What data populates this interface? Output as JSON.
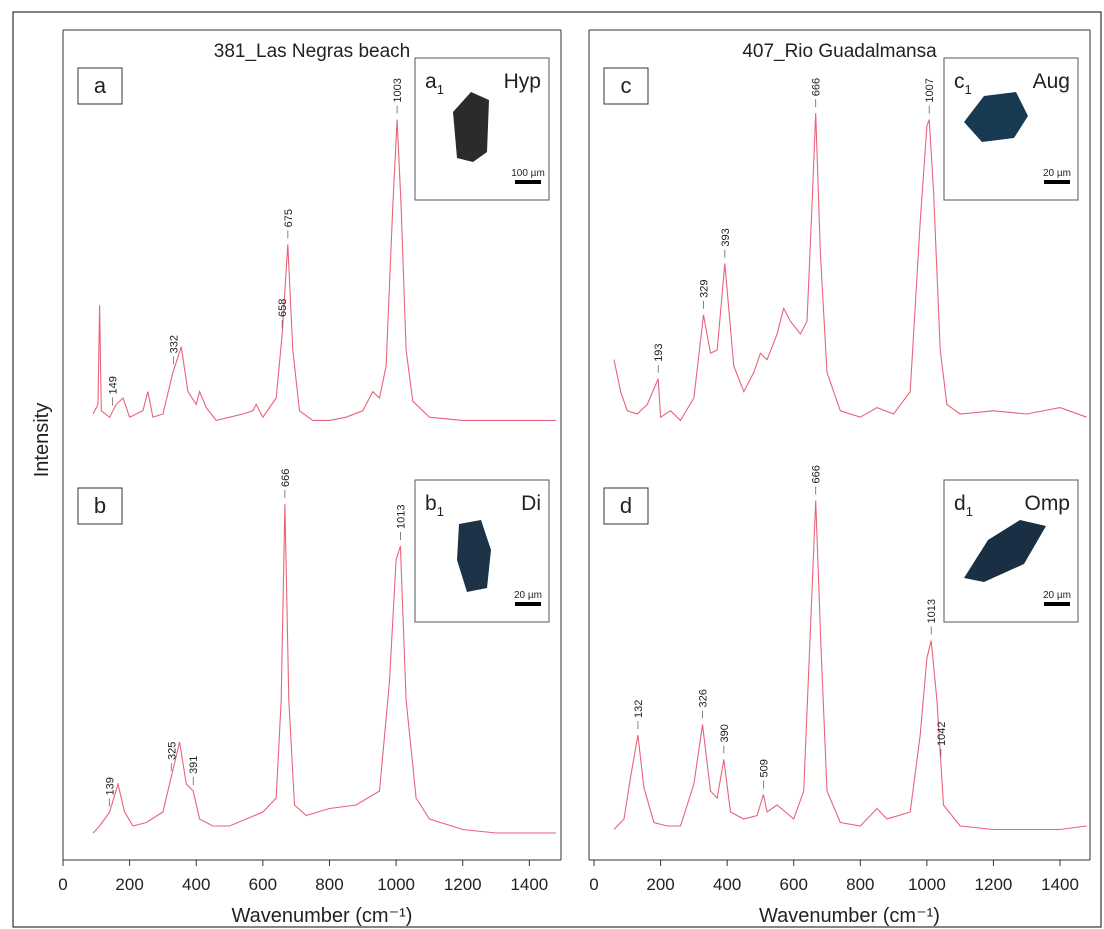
{
  "chart_data": [
    {
      "type": "line",
      "title": "381_Las Negras beach",
      "xlabel": "Wavenumber (cm⁻¹)",
      "ylabel": "Intensity",
      "color": "#e8637a",
      "xlim": [
        0,
        1495
      ],
      "xticks": [
        0,
        200,
        400,
        600,
        800,
        1000,
        1200,
        1400
      ],
      "panels": [
        {
          "label": "a",
          "ylim": [
            0,
            100
          ],
          "inset": {
            "label": "a",
            "subscript": "1",
            "mineral": "Hyp",
            "scale": "100 µm"
          },
          "x": [
            90,
            105,
            110,
            115,
            140,
            160,
            180,
            200,
            240,
            255,
            270,
            300,
            330,
            355,
            375,
            400,
            410,
            430,
            460,
            500,
            540,
            570,
            580,
            600,
            640,
            658,
            675,
            690,
            710,
            750,
            800,
            850,
            900,
            930,
            950,
            970,
            990,
            1003,
            1015,
            1030,
            1050,
            1100,
            1200,
            1300,
            1400,
            1480
          ],
          "values": [
            5,
            8,
            39,
            6,
            4,
            8,
            10,
            4,
            6,
            12,
            4,
            5,
            18,
            26,
            12,
            8,
            12,
            7,
            3,
            4,
            5,
            6,
            8,
            4,
            10,
            30,
            58,
            25,
            6,
            3,
            3,
            4,
            6,
            12,
            10,
            20,
            70,
            97,
            70,
            25,
            9,
            4,
            3,
            3,
            3,
            3
          ],
          "peaks": [
            149,
            332,
            658,
            675,
            1003
          ]
        },
        {
          "label": "b",
          "ylim": [
            0,
            100
          ],
          "inset": {
            "label": "b",
            "subscript": "1",
            "mineral": "Di",
            "scale": "20 µm"
          },
          "x": [
            90,
            110,
            140,
            165,
            185,
            210,
            250,
            300,
            330,
            350,
            370,
            391,
            410,
            450,
            500,
            550,
            600,
            640,
            655,
            666,
            678,
            695,
            730,
            800,
            880,
            950,
            980,
            1000,
            1013,
            1030,
            1060,
            1100,
            1200,
            1300,
            1400,
            1480
          ],
          "values": [
            2,
            4,
            8,
            16,
            8,
            4,
            5,
            8,
            20,
            28,
            16,
            14,
            6,
            4,
            4,
            6,
            8,
            12,
            40,
            96,
            40,
            10,
            7,
            9,
            10,
            14,
            45,
            80,
            84,
            40,
            12,
            6,
            3,
            2,
            2,
            2
          ],
          "peaks": [
            139,
            325,
            391,
            666,
            1013
          ]
        }
      ]
    },
    {
      "type": "line",
      "title": "407_Rio Guadalmansa",
      "xlabel": "Wavenumber (cm⁻¹)",
      "color": "#e8637a",
      "xlim": [
        -15,
        1490
      ],
      "xticks": [
        0,
        200,
        400,
        600,
        800,
        1000,
        1200,
        1400
      ],
      "panels": [
        {
          "label": "c",
          "ylim": [
            0,
            100
          ],
          "inset": {
            "label": "c",
            "subscript": "1",
            "mineral": "Aug",
            "scale": "20 µm"
          },
          "x": [
            60,
            80,
            100,
            130,
            160,
            193,
            200,
            230,
            260,
            300,
            329,
            350,
            370,
            393,
            420,
            450,
            480,
            500,
            520,
            550,
            570,
            590,
            620,
            640,
            655,
            666,
            680,
            700,
            740,
            800,
            850,
            900,
            950,
            980,
            1000,
            1007,
            1020,
            1040,
            1060,
            1100,
            1200,
            1300,
            1400,
            1480
          ],
          "values": [
            22,
            12,
            6,
            5,
            8,
            16,
            4,
            6,
            3,
            10,
            36,
            24,
            25,
            52,
            20,
            12,
            18,
            24,
            22,
            30,
            38,
            34,
            30,
            34,
            70,
            99,
            55,
            18,
            6,
            4,
            7,
            5,
            12,
            65,
            95,
            97,
            75,
            25,
            8,
            5,
            6,
            5,
            7,
            4
          ],
          "peaks": [
            193,
            329,
            393,
            666,
            1007
          ]
        },
        {
          "label": "d",
          "ylim": [
            0,
            100
          ],
          "inset": {
            "label": "d",
            "subscript": "1",
            "mineral": "Omp",
            "scale": "20 µm"
          },
          "x": [
            60,
            90,
            110,
            132,
            150,
            180,
            220,
            260,
            300,
            326,
            350,
            370,
            390,
            410,
            450,
            490,
            509,
            520,
            550,
            600,
            630,
            650,
            666,
            682,
            700,
            740,
            800,
            850,
            880,
            950,
            980,
            1000,
            1013,
            1030,
            1050,
            1100,
            1200,
            1300,
            1400,
            1480
          ],
          "values": [
            3,
            6,
            18,
            30,
            15,
            5,
            4,
            4,
            16,
            33,
            14,
            12,
            23,
            8,
            6,
            7,
            13,
            8,
            10,
            6,
            14,
            60,
            97,
            55,
            14,
            5,
            4,
            9,
            6,
            8,
            30,
            52,
            57,
            40,
            10,
            4,
            3,
            3,
            3,
            4
          ],
          "peaks": [
            132,
            326,
            390,
            509,
            666,
            1013,
            1042
          ]
        }
      ]
    }
  ]
}
